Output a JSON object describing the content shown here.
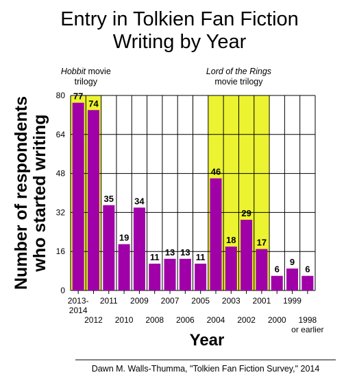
{
  "chart_data": {
    "type": "bar",
    "title_lines": [
      "Entry in Tolkien Fan Fiction",
      "Writing by Year"
    ],
    "ylabel_lines": [
      "Number of respondents",
      "who started writing"
    ],
    "xlabel": "Year",
    "ylim": [
      0,
      80
    ],
    "yticks": [
      0,
      16,
      32,
      48,
      64,
      80
    ],
    "grid": true,
    "categories": [
      "2013-2014",
      "2012",
      "2011",
      "2010",
      "2009",
      "2008",
      "2007",
      "2006",
      "2005",
      "2004",
      "2003",
      "2002",
      "2001",
      "2000",
      "1999",
      "1998 or earlier"
    ],
    "values": [
      77,
      74,
      35,
      19,
      34,
      11,
      13,
      13,
      11,
      46,
      18,
      29,
      17,
      6,
      9,
      6
    ],
    "tick_labels": [
      {
        "lines": [
          "2013-",
          "2014"
        ],
        "row": 1
      },
      {
        "lines": [
          "2012"
        ],
        "row": 2
      },
      {
        "lines": [
          "2011"
        ],
        "row": 1
      },
      {
        "lines": [
          "2010"
        ],
        "row": 2
      },
      {
        "lines": [
          "2009"
        ],
        "row": 1
      },
      {
        "lines": [
          "2008"
        ],
        "row": 2
      },
      {
        "lines": [
          "2007"
        ],
        "row": 1
      },
      {
        "lines": [
          "2006"
        ],
        "row": 2
      },
      {
        "lines": [
          "2005"
        ],
        "row": 1
      },
      {
        "lines": [
          "2004"
        ],
        "row": 2
      },
      {
        "lines": [
          "2003"
        ],
        "row": 1
      },
      {
        "lines": [
          "2002"
        ],
        "row": 2
      },
      {
        "lines": [
          "2001"
        ],
        "row": 1
      },
      {
        "lines": [
          "2000"
        ],
        "row": 2
      },
      {
        "lines": [
          "1999"
        ],
        "row": 1
      },
      {
        "lines": [
          "1998",
          "or earlier"
        ],
        "row": 2
      }
    ],
    "highlights": [
      {
        "from_index": 0,
        "to_index": 1,
        "label_italic": "Hobbit",
        "label_rest": " movie",
        "label_line2": "trilogy"
      },
      {
        "from_index": 9,
        "to_index": 12,
        "label_italic": "Lord of the Rings",
        "label_rest": "",
        "label_line2": "movie trilogy"
      }
    ],
    "bar_label_normal": [
      1,
      12
    ],
    "colors": {
      "bar": "#a000a8",
      "highlight": "#ecf331",
      "grid": "#000000",
      "text": "#000000"
    }
  },
  "credit": "Dawn M. Walls-Thumma, \"Tolkien Fan Fiction Survey,\" 2014"
}
